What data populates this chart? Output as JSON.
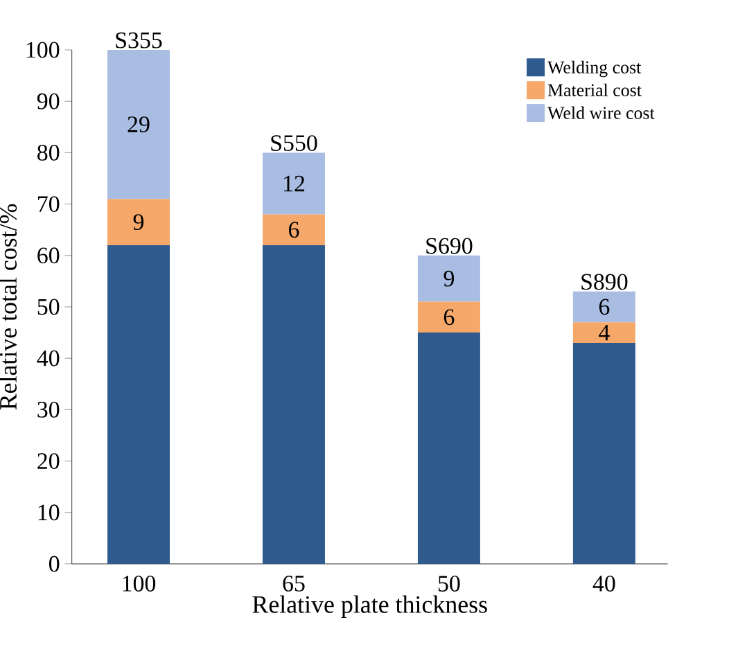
{
  "chart_data": {
    "type": "bar",
    "stacked": true,
    "xlabel": "Relative plate thickness",
    "ylabel": "Relative total cost/%",
    "categories": [
      "100",
      "65",
      "50",
      "40"
    ],
    "series": [
      {
        "name": "Welding cost",
        "color": "#2e5a8e",
        "values": [
          62,
          62,
          45,
          43
        ]
      },
      {
        "name": "Material cost",
        "color": "#f5a86a",
        "values": [
          9,
          6,
          6,
          4
        ],
        "value_labels": [
          "9",
          "6",
          "6",
          "4"
        ]
      },
      {
        "name": "Weld wire cost",
        "color": "#a9bde3",
        "values": [
          29,
          12,
          9,
          6
        ],
        "value_labels": [
          "29",
          "12",
          "9",
          "6"
        ]
      }
    ],
    "annotations": [
      {
        "text": "S355",
        "x": "100",
        "y": 100
      },
      {
        "text": "S550",
        "x": "65",
        "y": 80
      },
      {
        "text": "S690",
        "x": "50",
        "y": 60
      },
      {
        "text": "S890",
        "x": "40",
        "y": 53
      }
    ],
    "ylim": [
      0,
      100
    ],
    "yticks": [
      0,
      10,
      20,
      30,
      40,
      50,
      60,
      70,
      80,
      90,
      100
    ],
    "legend": "top right",
    "grid": false
  }
}
